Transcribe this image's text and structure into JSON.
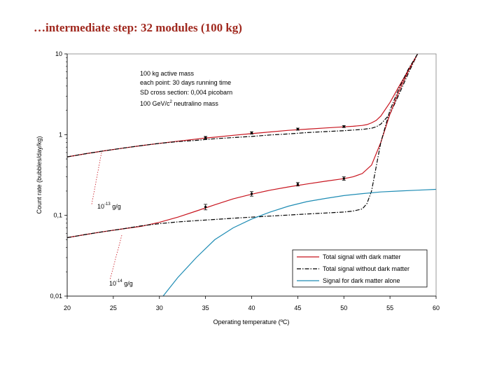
{
  "slide": {
    "title": "…intermediate step: 32 modules (100 kg)"
  },
  "chart_data": {
    "type": "line",
    "title": "",
    "xlabel": "Operating temperature (ºC)",
    "ylabel": "Count rate (bubbles/day/kg)",
    "xlim": [
      20,
      60
    ],
    "ylim": [
      0.01,
      10
    ],
    "yscale": "log",
    "x_ticks": [
      "20",
      "25",
      "30",
      "35",
      "40",
      "45",
      "50",
      "55",
      "60"
    ],
    "y_ticks": [
      "0,01",
      "0,1",
      "1",
      "10"
    ],
    "grid": false,
    "legend_position": "bottom-right",
    "info_lines": [
      "100 kg active mass",
      "each point: 30 days running time",
      "SD cross section: 0,004 picobarn",
      "100 GeV/c",
      "2",
      " neutralino mass"
    ],
    "annotations": [
      {
        "id": "ann-13",
        "base": "10",
        "exp": "-13",
        "unit": " g/g"
      },
      {
        "id": "ann-14",
        "base": "10",
        "exp": "-14",
        "unit": " g/g"
      }
    ],
    "series": [
      {
        "name": "Total signal with dark matter",
        "color": "#c8141e",
        "dash": "solid",
        "group": "upper",
        "x": [
          20,
          22,
          24,
          26,
          28,
          30,
          32,
          34,
          35,
          36,
          38,
          40,
          42,
          44,
          45,
          46,
          48,
          50,
          51,
          52,
          52.5,
          53,
          53.5,
          54,
          55,
          56,
          57,
          58
        ],
        "y": [
          0.53,
          0.58,
          0.63,
          0.68,
          0.73,
          0.78,
          0.83,
          0.88,
          0.91,
          0.93,
          0.98,
          1.03,
          1.08,
          1.13,
          1.15,
          1.17,
          1.21,
          1.25,
          1.27,
          1.3,
          1.33,
          1.4,
          1.5,
          1.7,
          2.5,
          4.0,
          6.3,
          10
        ]
      },
      {
        "name": "Total signal without dark matter",
        "color": "#000000",
        "dash": "dashdot",
        "group": "upper",
        "x": [
          20,
          22,
          24,
          26,
          28,
          30,
          32,
          34,
          36,
          38,
          40,
          42,
          44,
          46,
          48,
          50,
          51,
          52,
          53,
          53.5,
          54,
          55,
          56,
          57,
          58
        ],
        "y": [
          0.53,
          0.58,
          0.63,
          0.68,
          0.73,
          0.78,
          0.82,
          0.85,
          0.89,
          0.92,
          0.95,
          0.99,
          1.02,
          1.06,
          1.09,
          1.12,
          1.14,
          1.16,
          1.2,
          1.25,
          1.35,
          1.8,
          3.2,
          5.8,
          10
        ]
      },
      {
        "name": "Total signal with dark matter",
        "color": "#c8141e",
        "dash": "solid",
        "group": "lower",
        "x": [
          20,
          22,
          24,
          26,
          28,
          30,
          32,
          34,
          36,
          38,
          40,
          42,
          44,
          46,
          48,
          50,
          51,
          52,
          53,
          54,
          55,
          56,
          57,
          58
        ],
        "y": [
          0.053,
          0.058,
          0.063,
          0.068,
          0.073,
          0.082,
          0.095,
          0.113,
          0.135,
          0.16,
          0.183,
          0.205,
          0.225,
          0.245,
          0.265,
          0.285,
          0.3,
          0.33,
          0.42,
          0.8,
          1.8,
          3.5,
          6.2,
          10
        ]
      },
      {
        "name": "Total signal without dark matter",
        "color": "#000000",
        "dash": "dashdot",
        "group": "lower",
        "x": [
          20,
          22,
          24,
          26,
          28,
          30,
          32,
          34,
          36,
          38,
          40,
          42,
          44,
          46,
          48,
          50,
          51,
          52,
          52.5,
          53,
          53.5,
          54,
          55,
          56,
          57,
          58
        ],
        "y": [
          0.053,
          0.058,
          0.063,
          0.068,
          0.074,
          0.079,
          0.083,
          0.086,
          0.089,
          0.092,
          0.095,
          0.098,
          0.101,
          0.104,
          0.107,
          0.11,
          0.113,
          0.12,
          0.14,
          0.2,
          0.4,
          0.8,
          2.0,
          3.8,
          6.5,
          10
        ]
      },
      {
        "name": "Signal for dark matter alone",
        "color": "#1e8cb4",
        "dash": "solid",
        "group": "dm",
        "x": [
          30.4,
          32,
          34,
          36,
          38,
          40,
          42,
          44,
          46,
          48,
          50,
          52,
          54,
          56,
          58,
          60
        ],
        "y": [
          0.01,
          0.017,
          0.03,
          0.05,
          0.07,
          0.09,
          0.11,
          0.13,
          0.148,
          0.162,
          0.176,
          0.186,
          0.195,
          0.2,
          0.205,
          0.21
        ]
      }
    ],
    "data_points": [
      {
        "x": 35,
        "y": 0.92,
        "err": 0.03
      },
      {
        "x": 40,
        "y": 1.05,
        "err": 0.035
      },
      {
        "x": 45,
        "y": 1.17,
        "err": 0.035
      },
      {
        "x": 50,
        "y": 1.26,
        "err": 0.035
      },
      {
        "x": 35,
        "y": 0.127,
        "err": 0.01
      },
      {
        "x": 40,
        "y": 0.185,
        "err": 0.012
      },
      {
        "x": 45,
        "y": 0.243,
        "err": 0.012
      },
      {
        "x": 50,
        "y": 0.286,
        "err": 0.014
      }
    ]
  }
}
